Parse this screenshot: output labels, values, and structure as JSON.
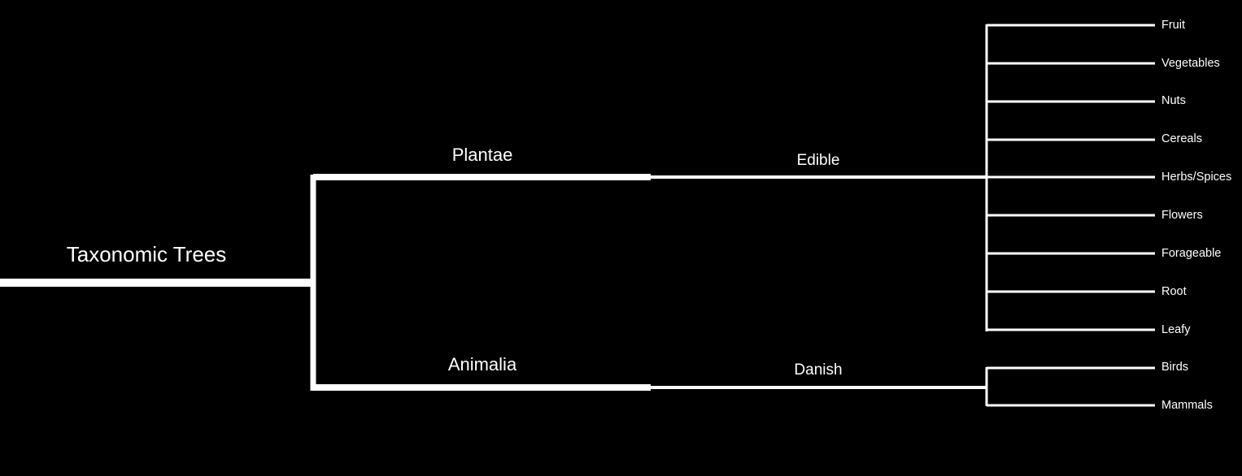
{
  "colors": {
    "background": "#000000",
    "line": "#ffffff",
    "text": "#ffffff"
  },
  "tree": {
    "root": {
      "label": "Taxonomic Trees",
      "children": [
        {
          "key": "plantae",
          "label": "Plantae",
          "children": [
            {
              "key": "edible",
              "label": "Edible",
              "leaves": [
                "Fruit",
                "Vegetables",
                "Nuts",
                "Cereals",
                "Herbs/Spices",
                "Flowers",
                "Forageable",
                "Root",
                "Leafy"
              ]
            }
          ]
        },
        {
          "key": "animalia",
          "label": "Animalia",
          "children": [
            {
              "key": "danish",
              "label": "Danish",
              "leaves": [
                "Birds",
                "Mammals"
              ]
            }
          ]
        }
      ]
    }
  }
}
